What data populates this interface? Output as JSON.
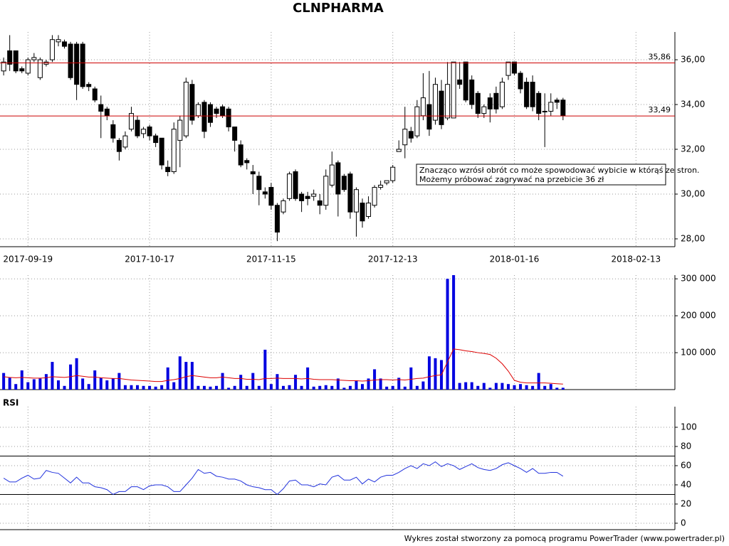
{
  "chart_data": [
    {
      "type": "candlestick",
      "title": "CLNPHARMA",
      "xlim": [
        -0.6,
        110.4
      ],
      "xticks": [
        {
          "value": 4,
          "label": "2017-09-19"
        },
        {
          "value": 24,
          "label": "2017-10-17"
        },
        {
          "value": 44,
          "label": "2017-11-15"
        },
        {
          "value": 64,
          "label": "2017-12-13"
        },
        {
          "value": 84,
          "label": "2018-01-16"
        },
        {
          "value": 104,
          "label": "2018-02-13"
        }
      ],
      "ylim": [
        27.65,
        37.24
      ],
      "yticks": [
        {
          "value": 28,
          "label": "28,00"
        },
        {
          "value": 30,
          "label": "30,00"
        },
        {
          "value": 32,
          "label": "32,00"
        },
        {
          "value": 34,
          "label": "34,00"
        },
        {
          "value": 36,
          "label": "36,00"
        }
      ],
      "grid": true,
      "hlines": [
        {
          "value": 35.86,
          "label": "35,86",
          "color": "#cc0000"
        },
        {
          "value": 33.49,
          "label": "33,49",
          "color": "#cc0000"
        }
      ],
      "annotation": [
        "Znacząco wzrósł obrót co może spowodować wybicie w którąś ze stron.",
        "Możemy próbować zagrywać na przebicie 36 zł"
      ],
      "open": [
        35.5,
        36.4,
        36.4,
        35.6,
        35.4,
        36.0,
        35.2,
        35.8,
        36.0,
        36.8,
        36.8,
        36.7,
        36.7,
        36.7,
        34.9,
        34.7,
        34.0,
        33.8,
        33.1,
        32.4,
        32.1,
        32.9,
        33.3,
        32.7,
        33.0,
        32.6,
        32.5,
        31.2,
        31.0,
        32.4,
        32.6,
        34.9,
        33.5,
        34.1,
        34.0,
        33.8,
        33.9,
        33.8,
        33.0,
        32.2,
        31.5,
        31.0,
        30.8,
        30.1,
        30.3,
        29.5,
        29.2,
        29.8,
        31.0,
        30.0,
        29.9,
        29.9,
        29.7,
        29.5,
        30.4,
        31.4,
        30.8,
        30.9,
        29.2,
        29.6,
        29.0,
        29.5,
        30.3,
        30.5,
        30.6,
        31.9,
        32.2,
        32.8,
        32.6,
        33.5,
        34.0,
        33.3,
        34.6,
        33.4,
        33.4,
        35.1,
        35.9,
        35.1,
        34.5,
        33.6,
        34.3,
        34.5,
        33.9,
        35.3,
        35.9,
        35.4,
        35.0,
        35.0,
        34.5,
        33.7,
        33.7,
        34.2,
        34.2
      ],
      "high": [
        36.1,
        37.1,
        36.4,
        35.7,
        36.1,
        36.3,
        36.1,
        36.0,
        37.1,
        37.1,
        36.9,
        36.8,
        36.8,
        36.8,
        35.0,
        34.8,
        34.4,
        33.9,
        33.3,
        32.5,
        32.8,
        33.9,
        33.5,
        33.0,
        33.1,
        32.7,
        32.5,
        31.5,
        33.2,
        33.5,
        35.2,
        35.1,
        34.1,
        34.2,
        34.1,
        33.9,
        34.0,
        33.9,
        33.0,
        32.4,
        31.6,
        31.3,
        31.0,
        30.3,
        30.5,
        29.6,
        29.8,
        31.0,
        31.1,
        30.1,
        30.1,
        30.2,
        30.0,
        31.1,
        31.9,
        31.5,
        30.9,
        31.0,
        30.3,
        29.8,
        29.9,
        30.4,
        30.6,
        30.6,
        31.3,
        32.4,
        33.9,
        33.0,
        34.2,
        35.4,
        35.5,
        35.2,
        35.1,
        35.9,
        35.9,
        35.9,
        35.9,
        35.3,
        34.6,
        34.0,
        34.5,
        34.8,
        35.2,
        35.9,
        35.9,
        35.5,
        35.2,
        35.3,
        34.6,
        34.5,
        34.5,
        34.3,
        34.3
      ],
      "low": [
        35.3,
        35.5,
        35.4,
        35.4,
        35.3,
        35.9,
        35.1,
        35.7,
        35.9,
        36.6,
        36.5,
        35.1,
        34.2,
        34.7,
        34.6,
        34.1,
        32.5,
        33.3,
        32.3,
        31.5,
        32.0,
        32.8,
        32.5,
        32.5,
        32.4,
        32.1,
        31.1,
        30.8,
        30.9,
        31.2,
        32.5,
        33.1,
        33.4,
        32.5,
        33.0,
        33.4,
        33.4,
        32.8,
        31.9,
        31.2,
        31.1,
        30.0,
        29.5,
        29.8,
        29.3,
        27.9,
        29.1,
        29.7,
        29.7,
        29.2,
        29.5,
        29.7,
        29.1,
        29.3,
        30.3,
        29.0,
        30.1,
        28.9,
        28.1,
        28.5,
        28.9,
        29.4,
        30.2,
        30.4,
        30.5,
        31.9,
        31.6,
        32.3,
        32.5,
        33.3,
        32.6,
        33.1,
        32.9,
        33.3,
        33.4,
        34.7,
        34.1,
        33.8,
        33.4,
        33.4,
        33.2,
        33.6,
        33.8,
        35.1,
        35.3,
        34.5,
        33.8,
        33.7,
        33.3,
        32.1,
        33.5,
        33.8,
        33.3
      ],
      "close": [
        35.9,
        35.8,
        35.5,
        35.5,
        36.0,
        36.1,
        36.0,
        35.9,
        36.9,
        36.9,
        36.6,
        35.2,
        34.9,
        34.8,
        34.8,
        34.2,
        33.7,
        33.5,
        32.5,
        31.9,
        32.6,
        33.6,
        32.6,
        32.9,
        32.6,
        32.3,
        31.3,
        31.0,
        32.9,
        33.3,
        35.0,
        33.3,
        34.0,
        32.8,
        33.2,
        33.6,
        33.5,
        33.0,
        32.4,
        31.3,
        31.4,
        30.9,
        30.2,
        30.0,
        29.5,
        28.3,
        29.7,
        30.9,
        29.8,
        29.7,
        29.8,
        30.0,
        29.5,
        30.8,
        31.3,
        30.0,
        30.2,
        29.2,
        30.2,
        28.8,
        29.6,
        30.3,
        30.4,
        30.6,
        31.2,
        32.0,
        32.9,
        32.5,
        33.9,
        34.3,
        32.9,
        34.9,
        33.1,
        34.9,
        35.9,
        34.9,
        34.2,
        34.0,
        33.6,
        33.9,
        33.8,
        33.8,
        35.0,
        35.9,
        35.4,
        34.7,
        33.9,
        33.9,
        33.6,
        33.7,
        34.1,
        34.1,
        33.5
      ]
    },
    {
      "type": "bar",
      "xlim": [
        -0.6,
        110.4
      ],
      "ylim": [
        0,
        310000
      ],
      "yticks": [
        {
          "value": 100000,
          "label": "100 000"
        },
        {
          "value": 200000,
          "label": "200 000"
        },
        {
          "value": 300000,
          "label": "300 000"
        }
      ],
      "grid": true,
      "series": [
        {
          "type": "bar",
          "color": "#0000e0",
          "values": [
            45000,
            32000,
            15000,
            52000,
            20000,
            28000,
            30000,
            42000,
            75000,
            25000,
            10000,
            68000,
            85000,
            30000,
            15000,
            52000,
            32000,
            25000,
            30000,
            45000,
            12000,
            12000,
            12000,
            10000,
            10000,
            8000,
            12000,
            60000,
            20000,
            90000,
            75000,
            75000,
            10000,
            10000,
            8000,
            10000,
            45000,
            5000,
            10000,
            40000,
            10000,
            45000,
            10000,
            108000,
            15000,
            42000,
            10000,
            12000,
            40000,
            10000,
            60000,
            8000,
            10000,
            12000,
            10000,
            30000,
            5000,
            10000,
            25000,
            15000,
            30000,
            55000,
            30000,
            8000,
            10000,
            32000,
            8000,
            60000,
            10000,
            22000,
            90000,
            85000,
            80000,
            300000,
            310000,
            18000,
            20000,
            20000,
            10000,
            18000,
            5000,
            18000,
            18000,
            15000,
            12000,
            15000,
            12000,
            10000,
            45000,
            10000,
            15000,
            5000,
            5000
          ]
        },
        {
          "type": "line",
          "color": "#dd0000",
          "values": [
            35000,
            33000,
            32000,
            33000,
            32000,
            31000,
            31000,
            32000,
            35000,
            34000,
            33000,
            35000,
            38000,
            36000,
            34000,
            34000,
            32000,
            31000,
            30000,
            30000,
            28000,
            26000,
            25000,
            24000,
            23000,
            22000,
            22000,
            25000,
            27000,
            30000,
            35000,
            38000,
            36000,
            34000,
            32000,
            32000,
            34000,
            32000,
            30000,
            30000,
            28000,
            28000,
            27000,
            30000,
            30000,
            31000,
            30000,
            30000,
            30000,
            29000,
            30000,
            28000,
            27000,
            27000,
            27000,
            26000,
            25000,
            24000,
            24000,
            23000,
            24000,
            26000,
            27000,
            27000,
            26000,
            27000,
            26000,
            28000,
            30000,
            31000,
            35000,
            38000,
            40000,
            75000,
            110000,
            108000,
            105000,
            103000,
            100000,
            98000,
            95000,
            85000,
            70000,
            50000,
            25000,
            20000,
            18000,
            18000,
            18000,
            18000,
            17000,
            16000,
            15000
          ]
        }
      ]
    },
    {
      "type": "line",
      "title": "RSI",
      "xlim": [
        -0.6,
        110.4
      ],
      "ylim": [
        -6.7,
        121.5
      ],
      "yticks": [
        0,
        20,
        40,
        60,
        80,
        100
      ],
      "levels": [
        70,
        30
      ],
      "grid": true,
      "color": "#2233dd",
      "values": [
        47,
        43,
        43,
        47,
        50,
        46,
        47,
        55,
        53,
        52,
        47,
        42,
        48,
        42,
        42,
        38,
        37,
        35,
        30,
        33,
        33,
        38,
        38,
        35,
        39,
        40,
        40,
        38,
        33,
        33,
        40,
        47,
        56,
        52,
        53,
        49,
        48,
        46,
        46,
        44,
        40,
        38,
        37,
        35,
        35,
        30,
        36,
        44,
        45,
        40,
        40,
        38,
        41,
        40,
        48,
        50,
        45,
        45,
        48,
        41,
        46,
        43,
        48,
        50,
        50,
        53,
        57,
        60,
        57,
        62,
        60,
        64,
        59,
        62,
        60,
        56,
        59,
        62,
        58,
        56,
        55,
        57,
        61,
        63,
        60,
        57,
        53,
        57,
        52,
        52,
        53,
        53,
        49
      ]
    }
  ],
  "footer": "Wykres został stworzony za pomocą programu PowerTrader (www.powertrader.pl)"
}
